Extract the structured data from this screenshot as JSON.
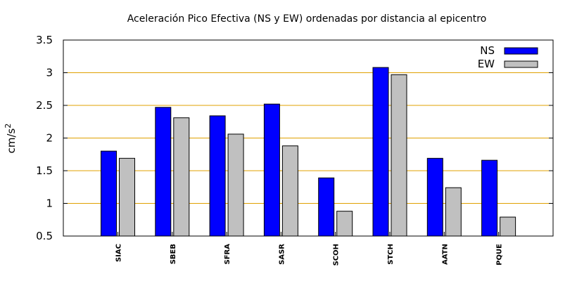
{
  "chart_data": {
    "type": "bar",
    "title": "Aceleración Pico Efectiva (NS y EW) ordenadas por distancia al epicentro",
    "ylabel": "cm/s",
    "ylabel_superscript": "2",
    "xlabel": "",
    "ylim": [
      0.5,
      3.5
    ],
    "yticks": [
      "0.5",
      "1",
      "1.5",
      "2",
      "2.5",
      "3",
      "3.5"
    ],
    "grid": "horizontal",
    "grid_color": "#e0a000",
    "legend_position": "top-right",
    "categories": [
      "SIAC",
      "SBEB",
      "SFRA",
      "SASR",
      "SCOH",
      "STCH",
      "AATN",
      "PQUE"
    ],
    "series": [
      {
        "name": "NS",
        "color": "#0000ff",
        "values": [
          1.8,
          2.47,
          2.34,
          2.52,
          1.39,
          3.08,
          1.69,
          1.66
        ]
      },
      {
        "name": "EW",
        "color": "#c0c0c0",
        "values": [
          1.69,
          2.31,
          2.06,
          1.88,
          0.88,
          2.97,
          1.24,
          0.79
        ]
      }
    ]
  }
}
